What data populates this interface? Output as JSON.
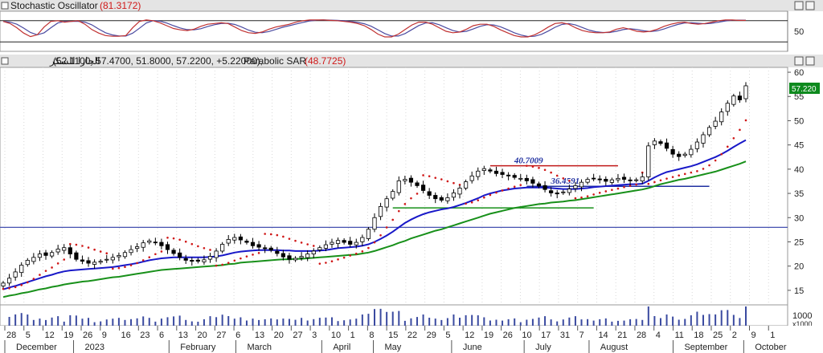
{
  "chart_data": {
    "type": "candlestick",
    "osc_panel": {
      "title": "Stochastic Oscillator",
      "value": "(81.3172)",
      "yticks": [
        50
      ],
      "levels": [
        80,
        20
      ],
      "k": [
        78,
        72,
        60,
        45,
        35,
        40,
        62,
        78,
        80,
        76,
        78,
        80,
        70,
        55,
        45,
        38,
        36,
        36,
        38,
        60,
        78,
        82,
        80,
        74,
        66,
        58,
        54,
        52,
        56,
        64,
        70,
        72,
        74,
        72,
        62,
        52,
        46,
        44,
        48,
        56,
        62,
        66,
        70,
        76,
        80,
        82,
        82,
        82,
        81,
        80,
        78,
        76,
        72,
        66,
        55,
        42,
        34,
        34,
        42,
        55,
        68,
        76,
        76,
        70,
        60,
        50,
        46,
        48,
        56,
        66,
        70,
        70,
        64,
        54,
        46,
        38,
        34,
        34,
        40,
        50,
        62,
        72,
        74,
        70,
        60,
        52,
        48,
        46,
        46,
        48,
        56,
        60,
        56,
        50,
        48,
        50,
        56,
        64,
        70,
        74,
        76,
        72,
        70,
        72,
        76,
        80,
        82,
        82,
        81,
        81
      ]
    },
    "price_panel": {
      "title": "الجازا للسكر",
      "ohlc_text": "(52.1100, 57.4700, 51.8000, 57.2200, +5.22000),",
      "indicator": "Parabolic SAR",
      "indicator_value": "(48.7725)",
      "last_price": "57.220",
      "ylim": [
        12,
        61
      ],
      "yticks": [
        15,
        20,
        25,
        30,
        35,
        40,
        45,
        50,
        55,
        60
      ],
      "close": [
        16.5,
        17.5,
        18.8,
        20.2,
        21.2,
        21.8,
        22.5,
        22.2,
        22.8,
        23.5,
        23.8,
        22.5,
        21.4,
        21.0,
        20.6,
        20.8,
        21.0,
        21.4,
        21.8,
        22.2,
        22.8,
        23.4,
        24.0,
        24.8,
        25.2,
        24.9,
        24.2,
        23.4,
        22.6,
        21.8,
        21.2,
        21.0,
        21.0,
        21.3,
        22.0,
        23.1,
        24.5,
        25.5,
        25.9,
        25.4,
        24.9,
        24.2,
        23.9,
        23.6,
        23.3,
        22.6,
        21.9,
        21.4,
        21.6,
        22.0,
        22.5,
        23.1,
        23.8,
        24.4,
        24.9,
        25.3,
        24.9,
        24.5,
        24.9,
        25.9,
        27.6,
        30.0,
        32.3,
        33.9,
        35.4,
        37.6,
        37.9,
        37.3,
        36.6,
        35.6,
        34.6,
        33.9,
        33.6,
        34.1,
        35.1,
        36.1,
        37.4,
        38.6,
        39.6,
        40.1,
        39.6,
        39.1,
        38.9,
        38.6,
        38.3,
        38.1,
        37.6,
        37.1,
        36.5,
        35.8,
        35.1,
        34.9,
        35.3,
        35.9,
        36.6,
        37.3,
        37.9,
        38.1,
        37.8,
        37.5,
        37.8,
        38.1,
        37.9,
        37.6,
        37.8,
        38.4,
        44.8,
        45.8,
        45.3,
        44.3,
        43.1,
        42.6,
        43.1,
        44.1,
        45.6,
        47.1,
        48.6,
        49.9,
        51.8,
        53.6,
        55.1,
        54.3,
        57.2
      ],
      "ema_short": [
        15.2,
        15.6,
        15.9,
        16.3,
        16.7,
        17.1,
        17.5,
        17.9,
        18.2,
        18.6,
        18.9,
        19.1,
        19.2,
        19.3,
        19.4,
        19.5,
        19.6,
        19.7,
        19.8,
        20.0,
        20.2,
        20.4,
        20.6,
        20.9,
        21.2,
        21.4,
        21.6,
        21.7,
        21.8,
        21.8,
        21.8,
        21.8,
        21.8,
        21.8,
        21.9,
        22.0,
        22.2,
        22.5,
        22.8,
        23.0,
        23.1,
        23.2,
        23.3,
        23.3,
        23.3,
        23.3,
        23.2,
        23.2,
        23.1,
        23.1,
        23.1,
        23.1,
        23.2,
        23.3,
        23.5,
        23.7,
        23.8,
        23.9,
        24.0,
        24.2,
        24.5,
        25.0,
        25.6,
        26.3,
        27.1,
        28.0,
        28.9,
        29.6,
        30.2,
        30.7,
        31.1,
        31.4,
        31.7,
        31.9,
        32.2,
        32.6,
        33.0,
        33.5,
        34.0,
        34.6,
        35.0,
        35.3,
        35.6,
        35.8,
        36.0,
        36.1,
        36.2,
        36.2,
        36.2,
        36.2,
        36.1,
        36.0,
        35.9,
        35.9,
        35.9,
        36.0,
        36.1,
        36.3,
        36.4,
        36.5,
        36.6,
        36.7,
        36.8,
        36.9,
        36.9,
        37.0,
        37.6,
        38.3,
        38.9,
        39.4,
        39.7,
        40.0,
        40.3,
        40.6,
        41.0,
        41.5,
        42.0,
        42.5,
        43.1,
        43.8,
        44.6,
        45.3,
        46.0
      ],
      "ema_long": [
        13.6,
        13.9,
        14.1,
        14.4,
        14.6,
        14.9,
        15.2,
        15.4,
        15.7,
        15.9,
        16.2,
        16.4,
        16.6,
        16.8,
        16.9,
        17.1,
        17.3,
        17.5,
        17.7,
        17.8,
        18.0,
        18.2,
        18.4,
        18.6,
        18.8,
        19.0,
        19.2,
        19.3,
        19.4,
        19.5,
        19.6,
        19.7,
        19.8,
        19.9,
        20.0,
        20.1,
        20.2,
        20.4,
        20.5,
        20.7,
        20.8,
        20.9,
        21.0,
        21.1,
        21.2,
        21.3,
        21.4,
        21.4,
        21.5,
        21.5,
        21.6,
        21.7,
        21.8,
        21.9,
        22.0,
        22.1,
        22.2,
        22.3,
        22.4,
        22.6,
        22.8,
        23.1,
        23.5,
        23.9,
        24.3,
        24.8,
        25.2,
        25.7,
        26.1,
        26.5,
        26.9,
        27.3,
        27.6,
        28.0,
        28.4,
        28.8,
        29.2,
        29.6,
        30.0,
        30.4,
        30.8,
        31.1,
        31.4,
        31.7,
        32.0,
        32.2,
        32.4,
        32.6,
        32.8,
        32.9,
        33.1,
        33.2,
        33.3,
        33.5,
        33.6,
        33.8,
        34.0,
        34.2,
        34.4,
        34.6,
        34.8,
        35.0,
        35.2,
        35.4,
        35.6,
        35.8,
        36.1,
        36.5,
        36.9,
        37.2,
        37.5,
        37.8,
        38.0,
        38.3,
        38.6,
        38.9,
        39.2,
        39.5,
        39.9,
        40.3,
        40.7,
        41.1,
        41.6
      ],
      "hlines": [
        {
          "value": 28.0,
          "color": "#4450b0"
        }
      ],
      "levels": [
        {
          "value": 40.7009,
          "label": "40.7009",
          "color": "#c01818",
          "from": 80,
          "to": 101
        },
        {
          "value": 32.0,
          "label": "",
          "color": "#18901a",
          "from": 64,
          "to": 97
        },
        {
          "value": 36.4591,
          "label": "36.4591",
          "color": "#2030a0",
          "from": 86,
          "to": 116
        }
      ]
    },
    "volume_panel": {
      "yticks": [
        "1000"
      ],
      "unit": "x1000"
    },
    "x_axis": {
      "day_ticks": [
        "28",
        "5",
        "12",
        "19",
        "26",
        "9",
        "16",
        "23",
        "6",
        "13",
        "20",
        "27",
        "6",
        "13",
        "20",
        "27",
        "3",
        "10",
        "1",
        "8",
        "15",
        "22",
        "29",
        "5",
        "12",
        "19",
        "26",
        "10",
        "17",
        "31",
        "7",
        "14",
        "21",
        "28",
        "4",
        "11",
        "18",
        "25",
        "2",
        "9",
        "1"
      ],
      "month_labels": [
        "December",
        "2023",
        "February",
        "March",
        "April",
        "May",
        "June",
        "July",
        "August",
        "September",
        "October"
      ]
    },
    "colors": {
      "up": "#ffffff",
      "down": "#000000",
      "ema_short": "#1818c8",
      "ema_long": "#18901a",
      "sar": "#d01818",
      "osc_k": "#c03030",
      "osc_d": "#4a4aa0",
      "header_bg": "#e4e4e4"
    }
  }
}
